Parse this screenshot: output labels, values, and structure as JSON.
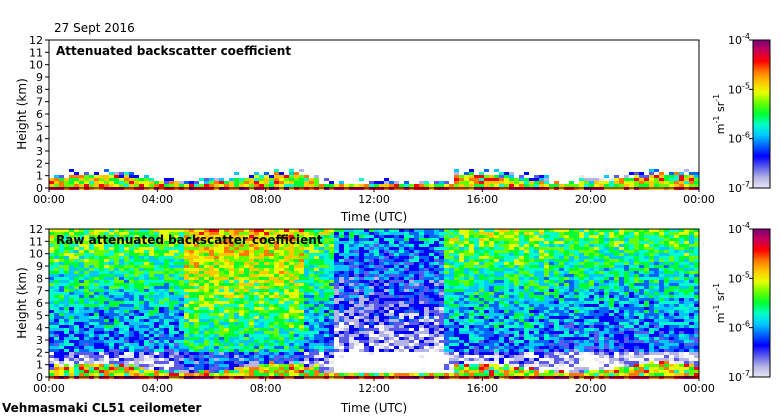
{
  "date_label": "27 Sept 2016",
  "footer_label": "Vehmasmaki CL51 ceilometer",
  "colors": {
    "scale": [
      "#e6e6f5",
      "#b4b4e6",
      "#5a5aeb",
      "#0000ff",
      "#0064ff",
      "#00c8ff",
      "#00ffc8",
      "#00ff32",
      "#64ff00",
      "#e6ff00",
      "#ffc800",
      "#ff7800",
      "#ff0000",
      "#c8005a",
      "#780078"
    ]
  },
  "chart_data": [
    {
      "type": "heatmap",
      "title": "Attenuated backscatter coefficient",
      "xlabel": "Time (UTC)",
      "ylabel": "Height (km)",
      "xlim": [
        0,
        24
      ],
      "ylim": [
        0,
        12
      ],
      "x_tick_labels": [
        "00:00",
        "04:00",
        "08:00",
        "12:00",
        "16:00",
        "20:00",
        "00:00"
      ],
      "y_tick_labels": [
        "0",
        "1",
        "2",
        "3",
        "4",
        "5",
        "6",
        "7",
        "8",
        "9",
        "10",
        "11",
        "12"
      ],
      "colorbar": {
        "label_base": "m",
        "label_sup1": "-1",
        "label_mid": " sr",
        "label_sup2": "-1",
        "ticks": [
          {
            "base": "10",
            "exp": "-4"
          },
          {
            "base": "10",
            "exp": "-5"
          },
          {
            "base": "10",
            "exp": "-6"
          },
          {
            "base": "10",
            "exp": "-7"
          }
        ]
      }
    },
    {
      "type": "heatmap",
      "title": "Raw attenuated backscatter coefficient",
      "xlabel": "Time (UTC)",
      "ylabel": "Height (km)",
      "xlim": [
        0,
        24
      ],
      "ylim": [
        0,
        12
      ],
      "x_tick_labels": [
        "00:00",
        "04:00",
        "08:00",
        "12:00",
        "16:00",
        "20:00",
        "00:00"
      ],
      "y_tick_labels": [
        "0",
        "1",
        "2",
        "3",
        "4",
        "5",
        "6",
        "7",
        "8",
        "9",
        "10",
        "11",
        "12"
      ],
      "colorbar": {
        "label_base": "m",
        "label_sup1": "-1",
        "label_mid": " sr",
        "label_sup2": "-1",
        "ticks": [
          {
            "base": "10",
            "exp": "-4"
          },
          {
            "base": "10",
            "exp": "-5"
          },
          {
            "base": "10",
            "exp": "-6"
          },
          {
            "base": "10",
            "exp": "-7"
          }
        ]
      }
    }
  ]
}
